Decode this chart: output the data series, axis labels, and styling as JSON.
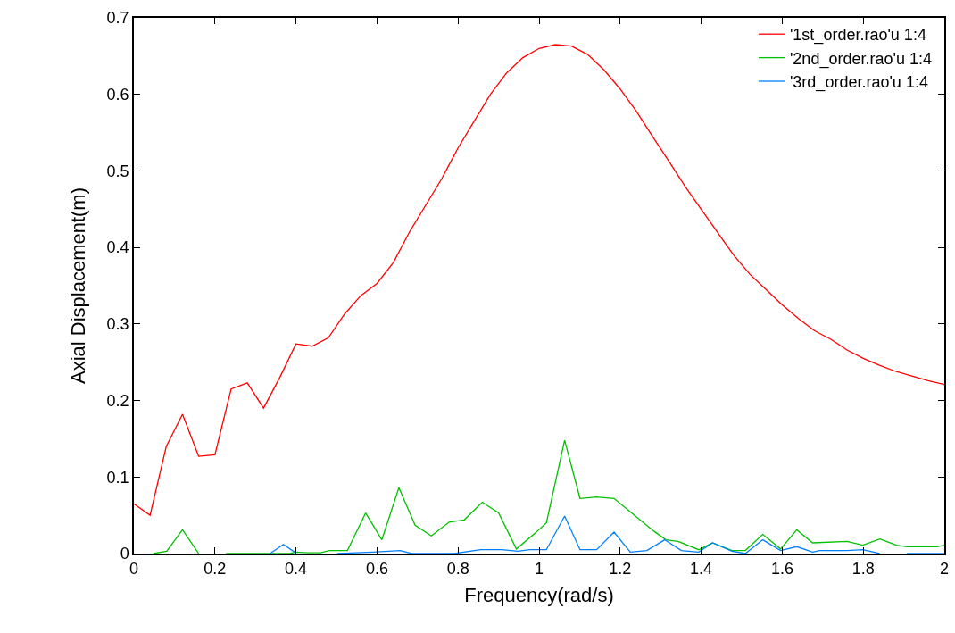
{
  "chart_data": {
    "type": "line",
    "xlabel": "Frequency(rad/s)",
    "ylabel": "Axial Displacement(m)",
    "xlim": [
      0,
      2
    ],
    "xticks": [
      0,
      0.2,
      0.4,
      0.6,
      0.8,
      1,
      1.2,
      1.4,
      1.6,
      1.8,
      2
    ],
    "ylim": [
      0,
      0.7
    ],
    "yticks": [
      0,
      0.1,
      0.2,
      0.3,
      0.4,
      0.5,
      0.6,
      0.7
    ],
    "grid": false,
    "legend": "top right",
    "marker": "none",
    "line_style": "solid",
    "series": [
      {
        "name": "'1st_order.rao'u 1:4",
        "color": "#ff0000",
        "x": [
          0,
          0.04,
          0.08,
          0.12,
          0.16,
          0.2,
          0.24,
          0.28,
          0.32,
          0.36,
          0.4,
          0.44,
          0.48,
          0.52,
          0.56,
          0.6,
          0.64,
          0.68,
          0.72,
          0.76,
          0.8,
          0.84,
          0.88,
          0.92,
          0.96,
          1.0,
          1.04,
          1.08,
          1.12,
          1.16,
          1.2,
          1.24,
          1.28,
          1.32,
          1.36,
          1.4,
          1.44,
          1.48,
          1.52,
          1.56,
          1.6,
          1.64,
          1.68,
          1.72,
          1.76,
          1.8,
          1.84,
          1.88,
          1.92,
          1.96,
          2.0
        ],
        "values": [
          0.065,
          0.05,
          0.14,
          0.182,
          0.127,
          0.129,
          0.215,
          0.223,
          0.19,
          0.23,
          0.274,
          0.271,
          0.282,
          0.313,
          0.337,
          0.353,
          0.38,
          0.42,
          0.455,
          0.49,
          0.53,
          0.565,
          0.6,
          0.628,
          0.648,
          0.66,
          0.665,
          0.663,
          0.652,
          0.632,
          0.607,
          0.578,
          0.545,
          0.513,
          0.48,
          0.45,
          0.42,
          0.39,
          0.365,
          0.345,
          0.325,
          0.307,
          0.291,
          0.28,
          0.266,
          0.255,
          0.246,
          0.238,
          0.232,
          0.226,
          0.221
        ]
      },
      {
        "name": "'2nd_order.rao'u 1:4",
        "color": "#00c000",
        "x": [
          0.048,
          0.081,
          0.12,
          0.16,
          0.18,
          0.227,
          0.384,
          0.4,
          0.428,
          0.46,
          0.483,
          0.527,
          0.572,
          0.612,
          0.654,
          0.694,
          0.734,
          0.778,
          0.815,
          0.86,
          0.9,
          0.944,
          0.991,
          1.018,
          1.063,
          1.101,
          1.142,
          1.185,
          1.247,
          1.284,
          1.313,
          1.343,
          1.394,
          1.428,
          1.476,
          1.509,
          1.552,
          1.596,
          1.636,
          1.675,
          1.76,
          1.799,
          1.841,
          1.882,
          1.908,
          1.982,
          2.0
        ],
        "values": [
          0,
          0.003,
          0.031,
          0,
          null,
          0,
          0,
          0.002,
          0.001,
          0.001,
          0.004,
          0.004,
          0.053,
          0.018,
          0.086,
          0.037,
          0.023,
          0.041,
          0.044,
          0.067,
          0.053,
          0.006,
          0.027,
          0.04,
          0.148,
          0.072,
          0.074,
          0.072,
          0.045,
          0.029,
          0.018,
          0.016,
          0.005,
          0.014,
          0.004,
          0.004,
          0.025,
          0.006,
          0.031,
          0.014,
          0.016,
          0.011,
          0.019,
          0.011,
          0.009,
          0.009,
          0.011
        ]
      },
      {
        "name": "'3rd_order.rao'u 1:4",
        "color": "#0080ff",
        "x": [
          0.336,
          0.369,
          0.399,
          0.45,
          0.502,
          0.59,
          0.657,
          0.686,
          0.756,
          0.79,
          0.856,
          0.908,
          0.948,
          0.977,
          1.018,
          1.063,
          1.101,
          1.142,
          1.185,
          1.225,
          1.266,
          1.31,
          1.351,
          1.394,
          1.428,
          1.476,
          1.509,
          1.552,
          1.596,
          1.636,
          1.675,
          1.692,
          1.76,
          1.799,
          1.841,
          1.87,
          1.908,
          2.0
        ],
        "values": [
          0,
          0.012,
          0.001,
          null,
          0,
          0.002,
          0.004,
          0,
          0,
          0,
          0.005,
          0.005,
          0.003,
          0.005,
          0.005,
          0.049,
          0.005,
          0.005,
          0.028,
          0.002,
          0.004,
          0.018,
          0.004,
          0.002,
          0.014,
          0.003,
          0,
          0.018,
          0.004,
          0.009,
          0.002,
          0.004,
          0.004,
          0.005,
          0,
          null,
          0,
          0
        ]
      }
    ]
  }
}
